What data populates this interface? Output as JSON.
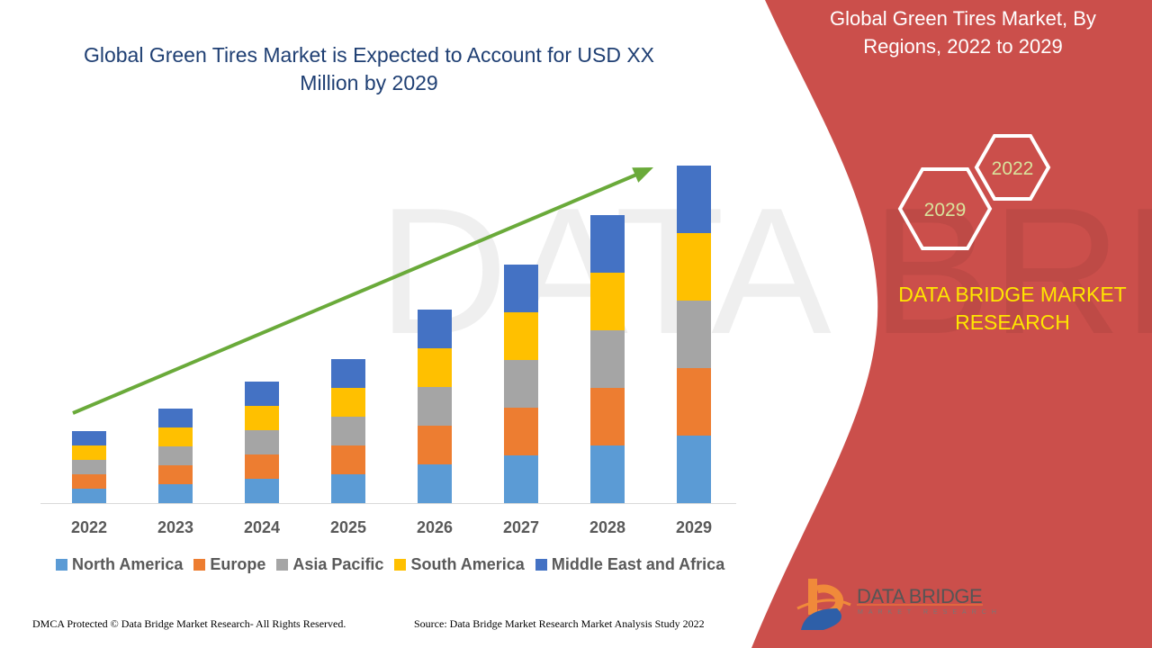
{
  "title": "Global Green Tires Market is Expected to Account for USD XX Million by 2029",
  "side_panel": {
    "title": "Global Green Tires Market, By Regions, 2022 to 2029",
    "hex_labels": [
      "2022",
      "2029"
    ],
    "brand": "DATA BRIDGE MARKET RESEARCH",
    "logo_text": "DATA BRIDGE",
    "logo_subtext": "MARKET RESEARCH",
    "panel_color": "#cb4f4b"
  },
  "footer": {
    "left": "DMCA Protected © Data Bridge Market Research- All Rights Reserved.",
    "right": "Source: Data Bridge Market Research Market Analysis Study 2022"
  },
  "chart_data": {
    "type": "bar",
    "stacked": true,
    "title": "Global Green Tires Market is Expected to Account for USD XX Million by 2029",
    "xlabel": "",
    "ylabel": "",
    "y_axis_shown": false,
    "grid": false,
    "legend_position": "bottom",
    "trend_arrow": {
      "color": "#6aaa3a",
      "from": "2022",
      "to": "2029"
    },
    "categories": [
      "2022",
      "2023",
      "2024",
      "2025",
      "2026",
      "2027",
      "2028",
      "2029"
    ],
    "ylim": [
      0,
      400
    ],
    "series": [
      {
        "name": "North America",
        "color": "#5b9bd5",
        "values": [
          16,
          21,
          27,
          32,
          43,
          53,
          64,
          75
        ]
      },
      {
        "name": "Europe",
        "color": "#ed7d31",
        "values": [
          16,
          21,
          27,
          32,
          43,
          53,
          64,
          75
        ]
      },
      {
        "name": "Asia Pacific",
        "color": "#a5a5a5",
        "values": [
          16,
          21,
          27,
          32,
          43,
          53,
          64,
          75
        ]
      },
      {
        "name": "South America",
        "color": "#ffc000",
        "values": [
          16,
          21,
          27,
          32,
          43,
          53,
          64,
          75
        ]
      },
      {
        "name": "Middle East and Africa",
        "color": "#4472c4",
        "values": [
          16,
          21,
          27,
          32,
          43,
          53,
          64,
          75
        ]
      }
    ]
  }
}
